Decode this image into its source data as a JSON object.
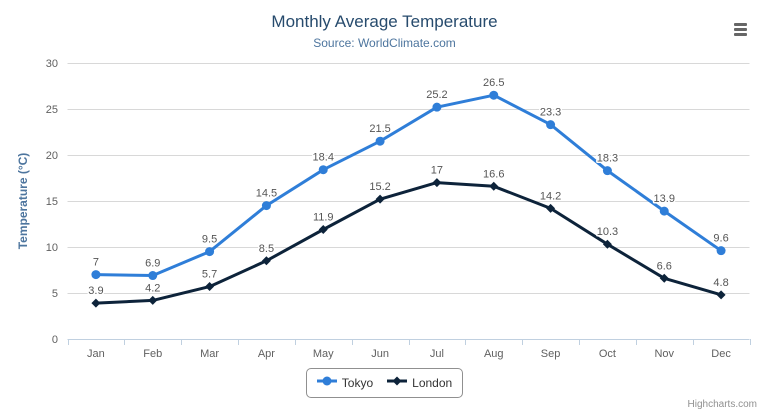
{
  "chart_data": {
    "type": "line",
    "title": "Monthly Average Temperature",
    "subtitle": "Source: WorldClimate.com",
    "categories": [
      "Jan",
      "Feb",
      "Mar",
      "Apr",
      "May",
      "Jun",
      "Jul",
      "Aug",
      "Sep",
      "Oct",
      "Nov",
      "Dec"
    ],
    "series": [
      {
        "name": "Tokyo",
        "color": "#2f7ed8",
        "marker": "circle",
        "values": [
          7,
          6.9,
          9.5,
          14.5,
          18.4,
          21.5,
          25.2,
          26.5,
          23.3,
          18.3,
          13.9,
          9.6
        ]
      },
      {
        "name": "London",
        "color": "#0d233a",
        "marker": "diamond",
        "values": [
          3.9,
          4.2,
          5.7,
          8.5,
          11.9,
          15.2,
          17,
          16.6,
          14.2,
          10.3,
          6.6,
          4.8
        ]
      }
    ],
    "xlabel": "",
    "ylabel": "Temperature (°C)",
    "ylim": [
      0,
      30
    ],
    "y_tick_interval": 5,
    "grid": true,
    "legend_position": "bottom",
    "data_labels": true
  },
  "colors": {
    "title": "#274b6d",
    "subtitle": "#4d759e",
    "axis_title": "#4d759e",
    "axis_labels": "#606060",
    "gridline": "#d8d8d8",
    "axis_line": "#c0d0e0",
    "data_label": "#555555",
    "legend_border": "#909090",
    "credits": "#909090",
    "menu_icon": "#666666"
  },
  "credits": {
    "label": "Highcharts.com"
  }
}
